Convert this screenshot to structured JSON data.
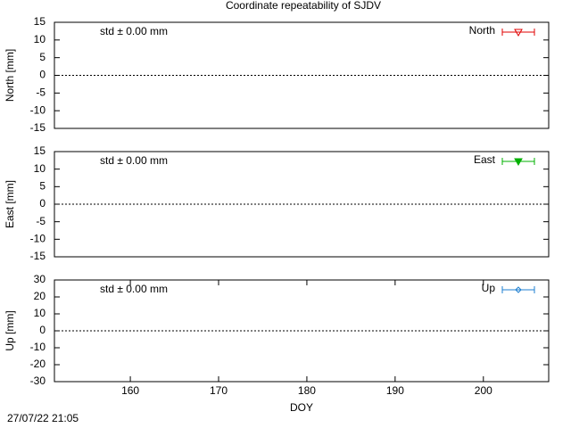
{
  "chart_data": [
    {
      "type": "scatter",
      "title": "Coordinate repeatability of SJDV",
      "ylabel": "North [mm]",
      "annotation": "std ± 0.00 mm",
      "annotation_color": "#e00000",
      "series": [
        {
          "name": "North",
          "color": "#e00000",
          "marker": "triangle-down-open",
          "values": []
        }
      ],
      "legend": "top-right",
      "zero_line": true,
      "xlim": [
        151.4,
        207.4
      ],
      "ylim": [
        -15,
        15
      ],
      "yticks": [
        15,
        10,
        5,
        0,
        -5,
        -10,
        -15
      ]
    },
    {
      "type": "scatter",
      "ylabel": "East [mm]",
      "annotation": "std ± 0.00 mm",
      "annotation_color": "#00b000",
      "series": [
        {
          "name": "East",
          "color": "#00b000",
          "marker": "triangle-down-filled",
          "values": []
        }
      ],
      "legend": "top-right",
      "zero_line": true,
      "xlim": [
        151.4,
        207.4
      ],
      "ylim": [
        -15,
        15
      ],
      "yticks": [
        15,
        10,
        5,
        0,
        -5,
        -10,
        -15
      ]
    },
    {
      "type": "scatter",
      "ylabel": "Up [mm]",
      "xlabel": "DOY",
      "annotation": "std ± 0.00 mm",
      "annotation_color": "#1e7fd0",
      "series": [
        {
          "name": "Up",
          "color": "#1e7fd0",
          "marker": "diamond-open",
          "values": []
        }
      ],
      "legend": "top-right",
      "zero_line": true,
      "xlim": [
        151.4,
        207.4
      ],
      "xticks": [
        160,
        170,
        180,
        190,
        200
      ],
      "ylim": [
        -30,
        30
      ],
      "yticks": [
        30,
        20,
        10,
        0,
        -10,
        -20,
        -30
      ]
    }
  ],
  "footer": "27/07/22 21:05"
}
